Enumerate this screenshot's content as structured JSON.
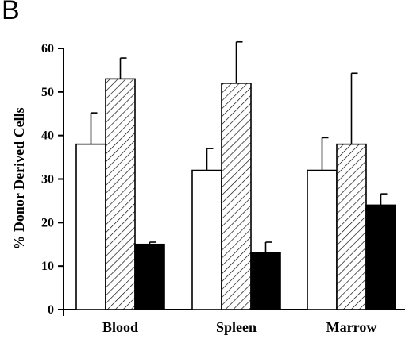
{
  "panel_label": "B",
  "chart_data": {
    "type": "bar",
    "ylabel": "% Donor Derived Cells",
    "xlabel": "",
    "ylim": [
      0,
      60
    ],
    "yticks": [
      0,
      10,
      20,
      30,
      40,
      50,
      60
    ],
    "categories": [
      "Blood",
      "Spleen",
      "Marrow"
    ],
    "series": [
      {
        "fill": "white",
        "values": [
          38,
          32,
          32
        ],
        "errors": [
          7.2,
          5,
          7.5
        ]
      },
      {
        "fill": "hatched",
        "values": [
          53,
          52,
          38
        ],
        "errors": [
          4.8,
          9.5,
          16.3
        ]
      },
      {
        "fill": "black",
        "values": [
          15,
          13,
          24
        ],
        "errors": [
          0.5,
          2.5,
          2.6
        ]
      }
    ],
    "grid": false,
    "legend": "none"
  }
}
